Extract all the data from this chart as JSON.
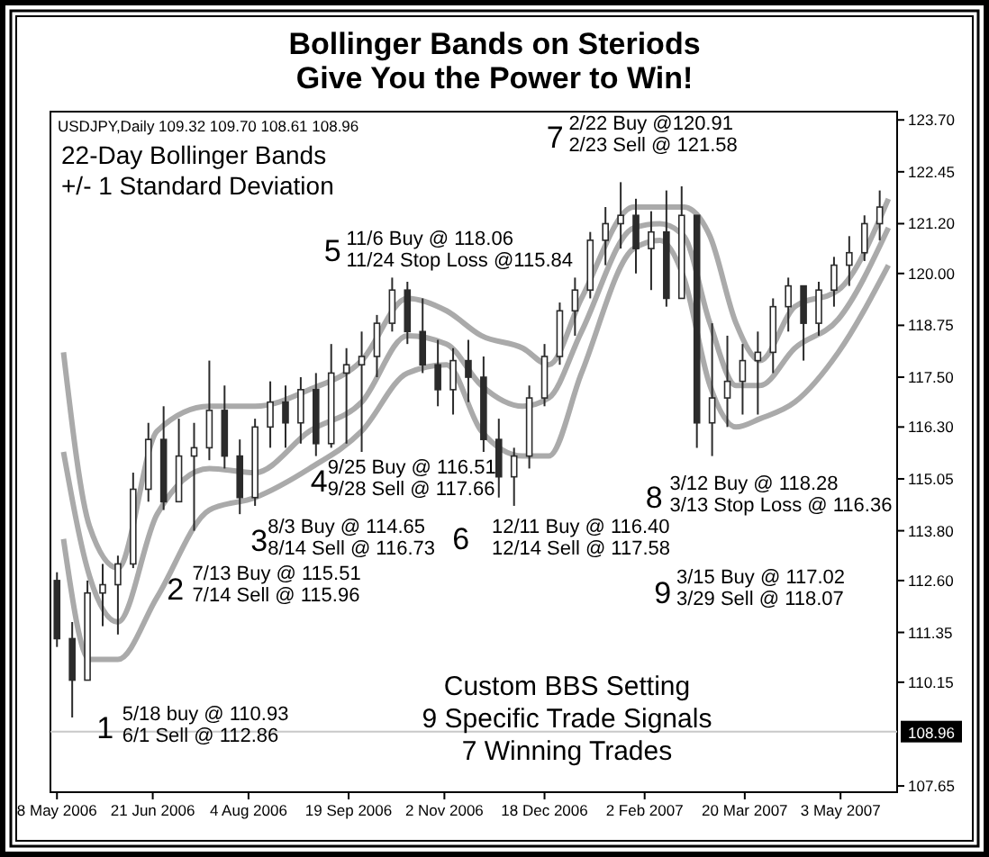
{
  "chart_data": {
    "type": "candlestick",
    "title": "Bollinger Bands on Steriods\nGive You the Power to Win!",
    "subtitle": "22-Day Bollinger Bands\n+/- 1 Standard Deviation",
    "x": [
      "2006-05-08",
      "2006-05-15",
      "2006-05-22",
      "2006-05-29",
      "2006-06-05",
      "2006-06-12",
      "2006-06-19",
      "2006-06-26",
      "2006-07-03",
      "2006-07-10",
      "2006-07-17",
      "2006-07-24",
      "2006-07-31",
      "2006-08-07",
      "2006-08-14",
      "2006-08-21",
      "2006-08-28",
      "2006-09-04",
      "2006-09-11",
      "2006-09-18",
      "2006-09-25",
      "2006-10-02",
      "2006-10-09",
      "2006-10-16",
      "2006-10-23",
      "2006-10-30",
      "2006-11-06",
      "2006-11-13",
      "2006-11-20",
      "2006-11-27",
      "2006-12-04",
      "2006-12-11",
      "2006-12-18",
      "2006-12-25",
      "2007-01-01",
      "2007-01-08",
      "2007-01-15",
      "2007-01-22",
      "2007-01-29",
      "2007-02-05",
      "2007-02-12",
      "2007-02-19",
      "2007-02-26",
      "2007-03-05",
      "2007-03-12",
      "2007-03-19",
      "2007-03-26",
      "2007-04-02",
      "2007-04-09",
      "2007-04-16",
      "2007-04-23",
      "2007-04-30",
      "2007-05-07",
      "2007-05-14",
      "2007-05-21"
    ],
    "ohlc": [
      [
        112.6,
        112.8,
        111.0,
        111.2
      ],
      [
        111.2,
        111.6,
        109.3,
        110.2
      ],
      [
        110.2,
        112.6,
        110.2,
        112.3
      ],
      [
        112.3,
        113.0,
        111.5,
        112.5
      ],
      [
        112.5,
        113.2,
        111.3,
        113.0
      ],
      [
        113.0,
        115.2,
        112.9,
        114.8
      ],
      [
        114.8,
        116.4,
        114.5,
        116.0
      ],
      [
        116.0,
        116.8,
        114.3,
        114.5
      ],
      [
        114.5,
        116.5,
        114.5,
        115.6
      ],
      [
        115.6,
        116.4,
        113.8,
        115.8
      ],
      [
        115.8,
        117.9,
        115.5,
        116.7
      ],
      [
        116.7,
        117.3,
        115.3,
        115.6
      ],
      [
        115.6,
        116.0,
        114.2,
        114.6
      ],
      [
        114.6,
        116.5,
        114.4,
        116.3
      ],
      [
        116.3,
        117.4,
        115.8,
        116.9
      ],
      [
        116.9,
        117.3,
        115.8,
        116.4
      ],
      [
        116.4,
        117.5,
        115.9,
        117.2
      ],
      [
        117.2,
        117.6,
        115.6,
        115.9
      ],
      [
        115.9,
        118.3,
        115.8,
        117.6
      ],
      [
        117.6,
        118.2,
        115.9,
        117.8
      ],
      [
        117.8,
        118.6,
        115.7,
        118.0
      ],
      [
        118.0,
        119.0,
        117.5,
        118.8
      ],
      [
        118.8,
        119.9,
        118.6,
        119.6
      ],
      [
        119.6,
        119.8,
        118.3,
        118.6
      ],
      [
        118.6,
        119.4,
        117.6,
        117.8
      ],
      [
        117.8,
        118.4,
        116.8,
        117.2
      ],
      [
        117.2,
        118.2,
        116.6,
        117.9
      ],
      [
        117.9,
        118.4,
        116.9,
        117.5
      ],
      [
        117.5,
        118.0,
        115.7,
        116.0
      ],
      [
        116.0,
        116.5,
        114.6,
        115.1
      ],
      [
        115.1,
        115.8,
        114.4,
        115.6
      ],
      [
        115.6,
        117.3,
        115.3,
        117.0
      ],
      [
        117.0,
        118.3,
        116.8,
        118.0
      ],
      [
        118.0,
        119.3,
        117.8,
        119.1
      ],
      [
        119.1,
        119.9,
        118.5,
        119.6
      ],
      [
        119.6,
        121.0,
        119.4,
        120.8
      ],
      [
        120.8,
        121.6,
        120.2,
        121.2
      ],
      [
        121.2,
        122.2,
        120.6,
        121.4
      ],
      [
        121.4,
        121.8,
        120.0,
        120.6
      ],
      [
        120.6,
        121.5,
        119.6,
        121.0
      ],
      [
        121.0,
        122.0,
        119.2,
        119.4
      ],
      [
        119.4,
        122.1,
        119.4,
        121.4
      ],
      [
        121.4,
        121.4,
        115.8,
        116.4
      ],
      [
        116.4,
        118.8,
        115.6,
        117.0
      ],
      [
        117.0,
        118.5,
        116.3,
        117.4
      ],
      [
        117.4,
        118.3,
        116.6,
        117.9
      ],
      [
        117.9,
        118.6,
        116.6,
        118.1
      ],
      [
        118.1,
        119.4,
        117.6,
        119.2
      ],
      [
        119.2,
        119.9,
        118.6,
        119.7
      ],
      [
        119.7,
        119.7,
        117.9,
        118.8
      ],
      [
        118.8,
        119.8,
        118.5,
        119.6
      ],
      [
        119.6,
        120.4,
        119.2,
        120.2
      ],
      [
        120.2,
        120.9,
        119.7,
        120.5
      ],
      [
        120.5,
        121.4,
        120.3,
        121.2
      ],
      [
        121.2,
        122.0,
        120.8,
        121.6
      ]
    ],
    "color": "#2b2b2b",
    "series": [
      {
        "type": "line",
        "color": "#aaaaaa",
        "x": [
          "2006-05-11",
          "2006-05-23",
          "2006-06-05",
          "2006-06-23",
          "2006-07-17",
          "2006-08-07",
          "2006-09-01",
          "2006-09-25",
          "2006-10-16",
          "2006-11-03",
          "2006-11-19",
          "2006-12-08",
          "2006-12-20",
          "2007-01-04",
          "2007-01-28",
          "2007-02-09",
          "2007-02-20",
          "2007-03-04",
          "2007-03-16",
          "2007-03-27",
          "2007-04-12",
          "2007-05-02",
          "2007-05-25"
        ],
        "values": [
          118.1,
          113.9,
          112.9,
          116.2,
          116.8,
          116.8,
          117.2,
          117.9,
          119.4,
          119.1,
          118.5,
          118.2,
          117.8,
          119.4,
          121.6,
          121.6,
          121.6,
          120.9,
          118.8,
          117.9,
          119.2,
          119.6,
          121.8
        ]
      },
      {
        "type": "line",
        "color": "#aaaaaa",
        "x": [
          "2006-05-11",
          "2006-05-23",
          "2006-06-05",
          "2006-06-23",
          "2006-07-17",
          "2006-08-07",
          "2006-09-01",
          "2006-09-25",
          "2006-10-16",
          "2006-11-03",
          "2006-11-19",
          "2006-12-08",
          "2006-12-20",
          "2007-01-04",
          "2007-01-28",
          "2007-02-09",
          "2007-02-20",
          "2007-03-04",
          "2007-03-16",
          "2007-03-27",
          "2007-04-12",
          "2007-05-02",
          "2007-05-25"
        ],
        "values": [
          115.7,
          112.7,
          111.6,
          114.2,
          115.3,
          115.2,
          116.2,
          116.9,
          118.5,
          118.3,
          117.3,
          116.8,
          117.0,
          118.6,
          121.1,
          121.2,
          120.9,
          118.8,
          117.3,
          117.3,
          118.2,
          118.9,
          121.1
        ]
      },
      {
        "type": "line",
        "color": "#aaaaaa",
        "x": [
          "2006-05-11",
          "2006-05-23",
          "2006-06-05",
          "2006-06-23",
          "2006-07-17",
          "2006-08-07",
          "2006-09-01",
          "2006-09-25",
          "2006-10-16",
          "2006-11-03",
          "2006-11-19",
          "2006-12-08",
          "2006-12-20",
          "2007-01-04",
          "2007-01-28",
          "2007-02-09",
          "2007-02-20",
          "2007-03-04",
          "2007-03-16",
          "2007-03-27",
          "2007-04-12",
          "2007-05-02",
          "2007-05-25"
        ],
        "values": [
          113.6,
          110.7,
          110.7,
          112.2,
          114.3,
          114.6,
          115.3,
          116.2,
          117.6,
          117.8,
          116.2,
          115.6,
          115.6,
          117.6,
          120.6,
          120.8,
          119.9,
          117.3,
          116.3,
          116.5,
          116.9,
          118.1,
          120.2
        ]
      }
    ],
    "xlim": [
      "2006-05-05",
      "2007-05-29"
    ],
    "xticks": [
      {
        "value": "2006-05-08",
        "label": "8 May 2006"
      },
      {
        "value": "2006-06-21",
        "label": "21 Jun 2006"
      },
      {
        "value": "2006-08-04",
        "label": "4 Aug 2006"
      },
      {
        "value": "2006-09-19",
        "label": "19 Sep 2006"
      },
      {
        "value": "2006-11-02",
        "label": "2 Nov 2006"
      },
      {
        "value": "2006-12-18",
        "label": "18 Dec 2006"
      },
      {
        "value": "2007-02-02",
        "label": "2 Feb 2007"
      },
      {
        "value": "2007-03-20",
        "label": "20 Mar 2007"
      },
      {
        "value": "2007-05-03",
        "label": "3 May 2007"
      }
    ],
    "ylim": [
      107.5,
      123.9
    ],
    "yticks": [
      {
        "value": 107.65,
        "label": "107.65"
      },
      {
        "value": 110.15,
        "label": "110.15"
      },
      {
        "value": 111.35,
        "label": "111.35"
      },
      {
        "value": 112.6,
        "label": "112.60"
      },
      {
        "value": 113.8,
        "label": "113.80"
      },
      {
        "value": 115.05,
        "label": "115.05"
      },
      {
        "value": 116.3,
        "label": "116.30"
      },
      {
        "value": 117.5,
        "label": "117.50"
      },
      {
        "value": 118.75,
        "label": "118.75"
      },
      {
        "value": 120,
        "label": "120.00"
      },
      {
        "value": 121.2,
        "label": "121.20"
      },
      {
        "value": 122.45,
        "label": "122.45"
      },
      {
        "value": 123.7,
        "label": "123.70"
      }
    ],
    "ref_lines": [
      {
        "axis": "y",
        "value": 108.96,
        "label": "108.96",
        "color": "#c8c8c8"
      }
    ],
    "annotations": [
      "USDJPY,Daily  109.32 109.70 108.61 108.96",
      "Custom BBS Setting\n9 Specific Trade Signals\n7 Winning Trades",
      "1",
      "5/18 buy @ 110.93\n6/1 Sell @ 112.86",
      "2",
      "7/13 Buy @ 115.51\n7/14 Sell @ 115.96",
      "3",
      "8/3 Buy @ 114.65\n8/14 Sell @ 116.73",
      "4",
      "9/25 Buy @ 116.51\n9/28 Sell @ 117.66",
      "5",
      "11/6 Buy @ 118.06\n11/24 Stop Loss @115.84",
      "6",
      "12/11 Buy @ 116.40\n12/14 Sell @ 117.58",
      "7",
      "2/22 Buy @120.91\n2/23 Sell @ 121.58",
      "8",
      "3/12 Buy @ 118.28\n3/13 Stop Loss @ 116.36",
      "9",
      "3/15 Buy @ 117.02\n3/29 Sell @ 118.07"
    ],
    "grid": false
  }
}
